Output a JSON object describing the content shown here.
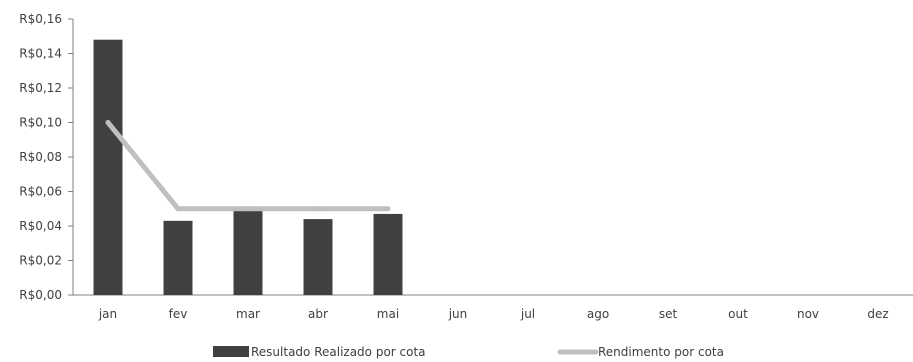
{
  "chart_data": {
    "type": "bar",
    "categories": [
      "jan",
      "fev",
      "mar",
      "abr",
      "mai",
      "jun",
      "jul",
      "ago",
      "set",
      "out",
      "nov",
      "dez"
    ],
    "series": [
      {
        "name": "Resultado Realizado por cota",
        "type": "bar",
        "color": "#404040",
        "values": [
          0.148,
          0.043,
          0.049,
          0.044,
          0.047,
          null,
          null,
          null,
          null,
          null,
          null,
          null
        ]
      },
      {
        "name": "Rendimento por cota",
        "type": "line",
        "color": "#bfbfbf",
        "values": [
          0.1,
          0.05,
          0.05,
          0.05,
          0.05,
          null,
          null,
          null,
          null,
          null,
          null,
          null
        ]
      }
    ],
    "ylim": [
      0,
      0.16
    ],
    "yticks": [
      0,
      0.02,
      0.04,
      0.06,
      0.08,
      0.1,
      0.12,
      0.14,
      0.16
    ],
    "ytick_labels": [
      "R$0,00",
      "R$0,02",
      "R$0,04",
      "R$0,06",
      "R$0,08",
      "R$0,10",
      "R$0,12",
      "R$0,14",
      "R$0,16"
    ],
    "grid": false,
    "legend_position": "bottom",
    "title": "",
    "xlabel": "",
    "ylabel": ""
  }
}
